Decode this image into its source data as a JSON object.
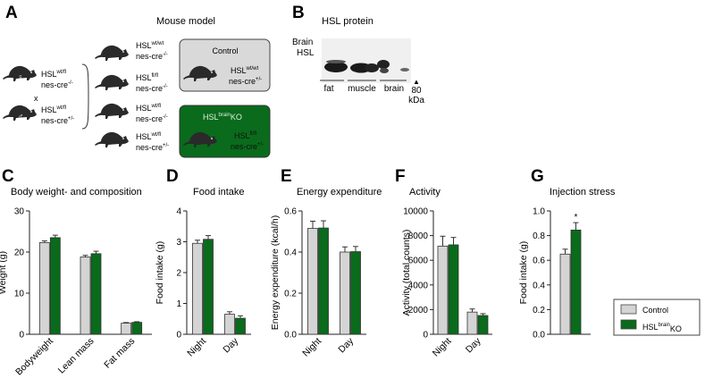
{
  "panels": {
    "A": {
      "letter": "A",
      "title": "Mouse model",
      "parents": [
        {
          "gene": "HSL",
          "sup": "wt/fl",
          "cre": "nes-cre",
          "cre_sup": "-/-",
          "sex": "female"
        },
        {
          "gene": "HSL",
          "sup": "wt/fl",
          "cre": "nes-cre",
          "cre_sup": "+/-",
          "sex": "male"
        }
      ],
      "cross": "x",
      "offspring": [
        {
          "gene": "HSL",
          "sup": "wt/wt",
          "cre": "nes-cre",
          "cre_sup": "-/-"
        },
        {
          "gene": "HSL",
          "sup": "fl/fl",
          "cre": "nes-cre",
          "cre_sup": "-/-"
        },
        {
          "gene": "HSL",
          "sup": "wt/fl",
          "cre": "nes-cre",
          "cre_sup": "-/-"
        },
        {
          "gene": "HSL",
          "sup": "wt/fl",
          "cre": "nes-cre",
          "cre_sup": "+/-"
        }
      ],
      "control_box": {
        "title": "Control",
        "gene": "HSL",
        "sup": "wt/wt",
        "cre": "nes-cre",
        "cre_sup": "+/-"
      },
      "ko_box": {
        "title_pre": "HSL",
        "title_sup": "brain",
        "title_post": "KO",
        "gene": "HSL",
        "sup": "fl/fl",
        "cre": "nes-cre",
        "cre_sup": "+/-"
      }
    },
    "B": {
      "letter": "B",
      "title": "HSL protein",
      "row1": "Brain",
      "row2": "HSL",
      "brain_signs": [
        "+",
        "-",
        "+",
        "-",
        "+",
        "-"
      ],
      "tissues": [
        "fat",
        "muscle",
        "brain"
      ],
      "marker": "80",
      "marker_unit": "kDa",
      "marker_arrow": "▲"
    }
  },
  "legend": {
    "control": "Control",
    "ko_pre": "HSL",
    "ko_sup": "brain",
    "ko_post": "KO",
    "control_color": "#d4d4d4",
    "ko_color": "#0a6b1c"
  },
  "chart_data": [
    {
      "letter": "C",
      "type": "bar",
      "title": "Body weight- and composition",
      "categories": [
        "Bodyweight",
        "Lean mass",
        "Fat mass"
      ],
      "ylabel": "Weight (g)",
      "ylim": [
        0,
        30
      ],
      "yticks": [
        0,
        10,
        20,
        30
      ],
      "series": [
        {
          "values": [
            22.3,
            18.8,
            2.7
          ],
          "errors": [
            0.4,
            0.4,
            0.15
          ]
        },
        {
          "values": [
            23.5,
            19.6,
            2.9
          ],
          "errors": [
            0.6,
            0.6,
            0.15
          ]
        }
      ],
      "xlabel_rotate": true,
      "annotations": []
    },
    {
      "letter": "D",
      "type": "bar",
      "title": "Food intake",
      "categories": [
        "Night",
        "Day"
      ],
      "ylabel": "Food intake (g)",
      "ylim": [
        0,
        4
      ],
      "yticks": [
        0,
        1,
        2,
        3,
        4
      ],
      "series": [
        {
          "values": [
            2.95,
            0.65
          ],
          "errors": [
            0.1,
            0.08
          ]
        },
        {
          "values": [
            3.08,
            0.52
          ],
          "errors": [
            0.12,
            0.08
          ]
        }
      ],
      "xlabel_rotate": true,
      "annotations": []
    },
    {
      "letter": "E",
      "type": "bar",
      "title": "Energy expenditure",
      "categories": [
        "Night",
        "Day"
      ],
      "ylabel": "Energy expenditure (kcal/h)",
      "ylim": [
        0,
        0.6
      ],
      "yticks": [
        0,
        0.2,
        0.4,
        0.6
      ],
      "yticklabels": [
        "0.0",
        "0.2",
        "0.4",
        "0.6"
      ],
      "series": [
        {
          "values": [
            0.515,
            0.4
          ],
          "errors": [
            0.035,
            0.025
          ]
        },
        {
          "values": [
            0.517,
            0.402
          ],
          "errors": [
            0.035,
            0.025
          ]
        }
      ],
      "xlabel_rotate": true,
      "annotations": []
    },
    {
      "letter": "F",
      "type": "bar",
      "title": "Activity",
      "categories": [
        "Night",
        "Day"
      ],
      "ylabel": "Activity (total counts)",
      "ylim": [
        0,
        10000
      ],
      "yticks": [
        0,
        2000,
        4000,
        6000,
        8000,
        10000
      ],
      "series": [
        {
          "values": [
            7150,
            1800
          ],
          "errors": [
            800,
            250
          ]
        },
        {
          "values": [
            7250,
            1520
          ],
          "errors": [
            600,
            150
          ]
        }
      ],
      "xlabel_rotate": true,
      "annotations": []
    },
    {
      "letter": "G",
      "type": "bar",
      "title": "Injection stress",
      "categories": [
        ""
      ],
      "ylabel": "Food intake (g)",
      "ylim": [
        0,
        1.0
      ],
      "yticks": [
        0,
        0.2,
        0.4,
        0.6,
        0.8,
        1.0
      ],
      "yticklabels": [
        "0.0",
        "0.2",
        "0.4",
        "0.6",
        "0.8",
        "1.0"
      ],
      "series": [
        {
          "values": [
            0.65
          ],
          "errors": [
            0.04
          ]
        },
        {
          "values": [
            0.845
          ],
          "errors": [
            0.06
          ]
        }
      ],
      "xlabel_rotate": false,
      "annotations": [
        {
          "category": 0,
          "series": 1,
          "text": "*"
        }
      ]
    }
  ]
}
